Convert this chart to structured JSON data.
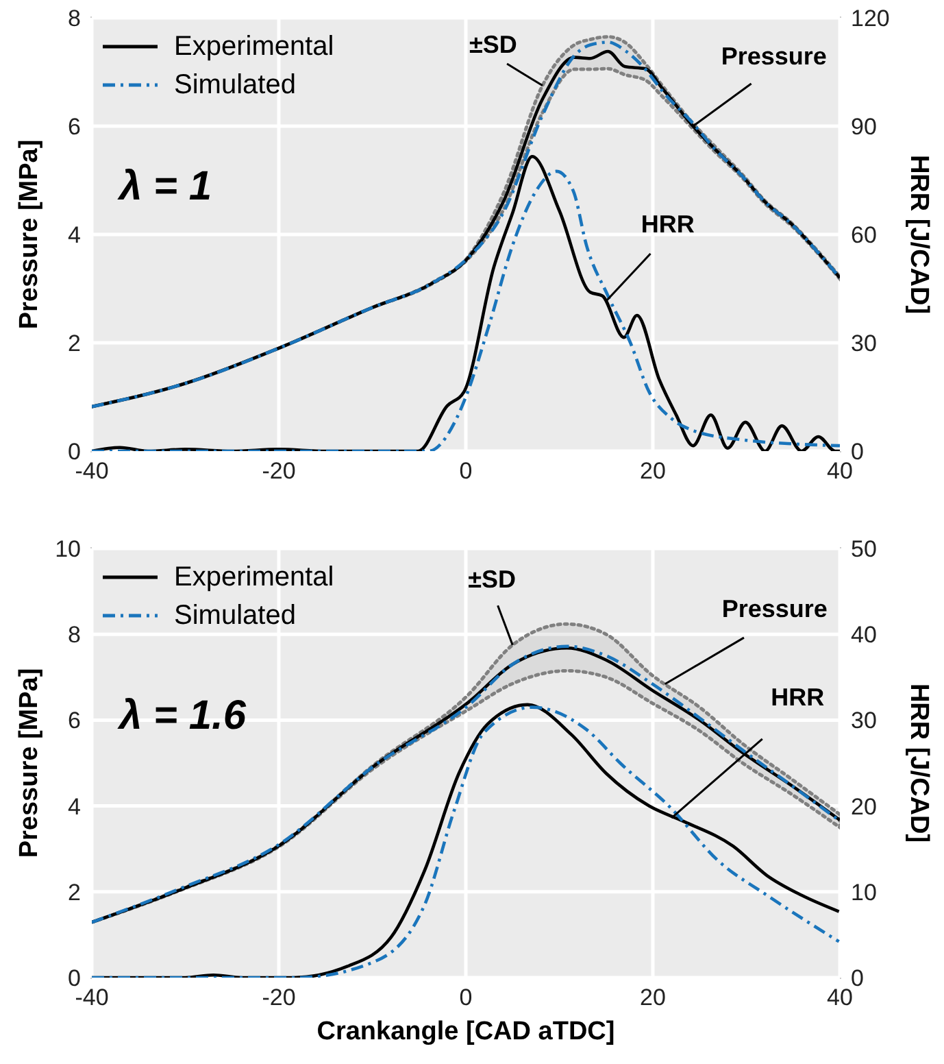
{
  "chart_data": [
    {
      "type": "line",
      "xlim": [
        -40,
        40
      ],
      "xticks": [
        -40,
        -20,
        0,
        20,
        40
      ],
      "ylim": [
        0,
        8
      ],
      "yticks": [
        0,
        2,
        4,
        6,
        8
      ],
      "y2lim": [
        0,
        120
      ],
      "y2ticks": [
        0,
        30,
        60,
        90,
        120
      ],
      "ylabel": "Pressure [MPa]",
      "y2label": "HRR [J/CAD]",
      "grid": true,
      "legend": "top left",
      "annotations": [
        "λ = 1",
        {
          "text": "±SD",
          "x": 8.2,
          "y": 6.75
        },
        {
          "text": "Pressure",
          "x": 24.3,
          "y": 6.0
        },
        {
          "text": "HRR",
          "x": 15,
          "y": 2.77
        }
      ],
      "series": [
        {
          "name": "Experimental",
          "color": "#000000",
          "line_style": "solid",
          "x": [
            -40,
            -30,
            -20,
            -10,
            -3.7,
            0.3,
            4,
            8.2,
            11.6,
            13.3,
            15.2,
            17,
            19.2,
            21,
            24.3,
            26.5,
            29.6,
            32,
            34.9,
            37.5,
            40
          ],
          "values": [
            0.82,
            1.25,
            1.9,
            2.65,
            3.09,
            3.58,
            4.6,
            6.5,
            7.27,
            7.25,
            7.38,
            7.1,
            7.06,
            6.7,
            6.0,
            5.6,
            5.07,
            4.6,
            4.18,
            3.7,
            3.2
          ],
          "upper": [
            0.82,
            1.25,
            1.9,
            2.65,
            3.1,
            3.6,
            4.75,
            6.75,
            7.5,
            7.6,
            7.65,
            7.55,
            7.15,
            6.75,
            6.05,
            5.65,
            5.1,
            4.62,
            4.2,
            3.72,
            3.22
          ],
          "lower": [
            0.82,
            1.25,
            1.9,
            2.65,
            3.08,
            3.56,
            4.45,
            6.25,
            7.05,
            7.05,
            7.06,
            6.95,
            6.85,
            6.55,
            5.95,
            5.55,
            5.04,
            4.57,
            4.15,
            3.68,
            3.18
          ]
        },
        {
          "name": "Simulated",
          "color": "#1a75bc",
          "line_style": "dashdot",
          "x": [
            -40,
            -30,
            -20,
            -10,
            -3.7,
            0.3,
            4,
            8.2,
            11.6,
            13.3,
            15.2,
            17,
            19.2,
            21,
            24.3,
            26.5,
            29.6,
            32,
            34.9,
            37.5,
            40
          ],
          "values": [
            0.82,
            1.25,
            1.9,
            2.65,
            3.09,
            3.58,
            4.4,
            6.2,
            7.3,
            7.5,
            7.55,
            7.4,
            7.05,
            6.65,
            6.05,
            5.6,
            5.07,
            4.6,
            4.18,
            3.7,
            3.2
          ]
        },
        {
          "color": "#000000",
          "line_style": "solid",
          "axis": "y2",
          "x": [
            -40,
            -37,
            -34,
            -30,
            -25,
            -20,
            -15,
            -10,
            -5.1,
            -2,
            -0.2,
            3,
            5,
            7.1,
            10,
            13.3,
            14.6,
            16.9,
            18.3,
            20.7,
            22.5,
            24.3,
            26.2,
            28,
            29.9,
            32,
            33.8,
            35.9,
            37.7,
            39.5,
            40
          ],
          "values": [
            0,
            1,
            0,
            0.5,
            0,
            0.5,
            0,
            0,
            0,
            12.5,
            16.4,
            51,
            66,
            81.6,
            66.6,
            44,
            43,
            31.5,
            37.6,
            19.7,
            10,
            1.5,
            10,
            0.8,
            8,
            0,
            7,
            0,
            4,
            0,
            0
          ]
        },
        {
          "color": "#1a75bc",
          "line_style": "dashdot",
          "axis": "y2",
          "x": [
            -40,
            -30,
            -20,
            -10,
            -4,
            -1,
            0,
            2.5,
            5,
            7.5,
            9.7,
            11.5,
            12.9,
            15.2,
            17.6,
            19.6,
            22,
            24.3,
            30,
            35,
            40
          ],
          "values": [
            0,
            0,
            0,
            0,
            0,
            9,
            15,
            35,
            57,
            72,
            77.5,
            72,
            57,
            43,
            30,
            16.4,
            9,
            5.7,
            3,
            2,
            1.5
          ]
        }
      ]
    },
    {
      "type": "line",
      "xlim": [
        -40,
        40
      ],
      "xticks": [
        -40,
        -20,
        0,
        20,
        40
      ],
      "ylim": [
        0,
        10
      ],
      "yticks": [
        0,
        2,
        4,
        6,
        8,
        10
      ],
      "y2lim": [
        0,
        50
      ],
      "y2ticks": [
        0,
        10,
        20,
        30,
        40,
        50
      ],
      "xlabel": "Crankangle [CAD aTDC]",
      "ylabel": "Pressure [MPa]",
      "y2label": "HRR [J/CAD]",
      "grid": true,
      "legend": "top left",
      "annotations": [
        "λ = 1.6",
        {
          "text": "±SD",
          "x": 5,
          "y": 7.75
        },
        {
          "text": "Pressure",
          "x": 21.3,
          "y": 6.84
        },
        {
          "text": "HRR",
          "x": 22,
          "y": 3.72
        }
      ],
      "series": [
        {
          "name": "Experimental",
          "color": "#000000",
          "line_style": "solid",
          "x": [
            -40,
            -30.6,
            -20,
            -9.7,
            0.3,
            5,
            10.8,
            15,
            19.9,
            25,
            29.6,
            35,
            40
          ],
          "values": [
            1.29,
            2.04,
            3.07,
            4.95,
            6.42,
            7.3,
            7.68,
            7.4,
            6.7,
            6.0,
            5.24,
            4.45,
            3.67
          ],
          "upper": [
            1.29,
            2.05,
            3.08,
            4.98,
            6.6,
            7.75,
            8.24,
            8.0,
            7.05,
            6.3,
            5.45,
            4.6,
            3.8
          ],
          "lower": [
            1.29,
            2.03,
            3.05,
            4.9,
            6.25,
            6.85,
            7.15,
            7.0,
            6.4,
            5.75,
            5.0,
            4.25,
            3.5
          ]
        },
        {
          "name": "Simulated",
          "color": "#1a75bc",
          "line_style": "dashdot",
          "x": [
            -40,
            -30.6,
            -20,
            -9.7,
            0.3,
            5,
            10.8,
            15,
            19.9,
            25,
            29.6,
            35,
            40
          ],
          "values": [
            1.29,
            2.07,
            3.1,
            4.95,
            6.35,
            7.3,
            7.72,
            7.5,
            6.85,
            6.05,
            5.3,
            4.45,
            3.65
          ]
        },
        {
          "color": "#000000",
          "line_style": "solid",
          "axis": "y2",
          "x": [
            -40,
            -30,
            -27,
            -24,
            -18.5,
            -12.7,
            -8,
            -4.4,
            -0.7,
            2.3,
            6.6,
            11.3,
            15,
            19.6,
            23.3,
            28.6,
            32.2,
            35.9,
            39.9
          ],
          "values": [
            0,
            0,
            0.3,
            0,
            0,
            1.3,
            4.7,
            12.5,
            23.9,
            29.5,
            31.8,
            28.3,
            23.8,
            20,
            18.2,
            15.3,
            11.9,
            9.6,
            7.7
          ]
        },
        {
          "color": "#1a75bc",
          "line_style": "dashdot",
          "axis": "y2",
          "x": [
            -40,
            -30,
            -18,
            -9.7,
            -4.4,
            -1.3,
            1.9,
            7.1,
            12.9,
            16.6,
            21.8,
            27,
            32.2,
            39.9
          ],
          "values": [
            0,
            0,
            0,
            1.9,
            8.5,
            19.3,
            28.5,
            31.5,
            28.9,
            24.9,
            19.9,
            13.6,
            9.6,
            4.2
          ]
        }
      ]
    }
  ]
}
